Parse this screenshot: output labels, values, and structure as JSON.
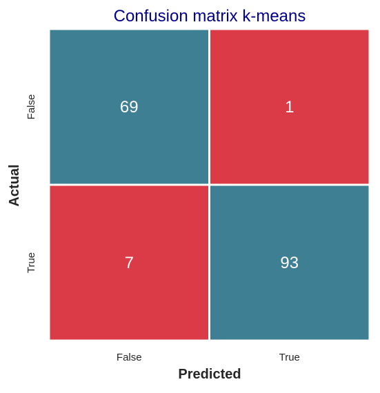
{
  "chart_data": {
    "type": "heatmap",
    "title": "Confusion matrix k-means",
    "xlabel": "Predicted",
    "ylabel": "Actual",
    "x_categories": [
      "False",
      "True"
    ],
    "y_categories": [
      "False",
      "True"
    ],
    "values": [
      [
        69,
        1
      ],
      [
        7,
        93
      ]
    ],
    "colors": {
      "diagonal": "#3f7f93",
      "off_diagonal": "#da3b46",
      "title": "#00008b",
      "cell_text": "#ffffff",
      "label_text": "#262626",
      "grid": "#ffffff"
    },
    "grid": false,
    "colorbar": false
  }
}
